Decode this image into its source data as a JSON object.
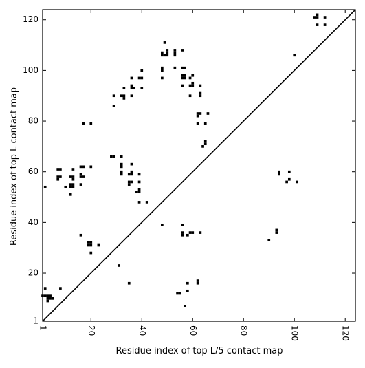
{
  "chart_data": {
    "type": "scatter",
    "title": "",
    "xlabel": "Residue index of top L/5 contact map",
    "ylabel": "Residue index of top L contact map",
    "xlim": [
      1,
      124
    ],
    "ylim": [
      1,
      124
    ],
    "x_ticks": [
      "1",
      "20",
      "40",
      "60",
      "80",
      "100",
      "120"
    ],
    "y_ticks": [
      "1",
      "20",
      "40",
      "60",
      "80",
      "100",
      "120"
    ],
    "x_tick_values": [
      1,
      20,
      40,
      60,
      80,
      100,
      120
    ],
    "y_tick_values": [
      1,
      20,
      40,
      60,
      80,
      100,
      120
    ],
    "x_tick_rotation": "vertical",
    "marker": "square",
    "marker_color": "#000000",
    "diagonal_line": true,
    "grid": false,
    "series": [
      {
        "values": [
          [
            49,
            111
          ],
          [
            48,
            107
          ],
          [
            48,
            106
          ],
          [
            49,
            106
          ],
          [
            50,
            106
          ],
          [
            50,
            107
          ],
          [
            50,
            108
          ],
          [
            53,
            106
          ],
          [
            53,
            107
          ],
          [
            53,
            108
          ],
          [
            56,
            108
          ],
          [
            48,
            101
          ],
          [
            48,
            100
          ],
          [
            53,
            101
          ],
          [
            56,
            101
          ],
          [
            57,
            101
          ],
          [
            56,
            98
          ],
          [
            56,
            97
          ],
          [
            57,
            98
          ],
          [
            57,
            97
          ],
          [
            60,
            98
          ],
          [
            59,
            97
          ],
          [
            40,
            100
          ],
          [
            36,
            97
          ],
          [
            39,
            97
          ],
          [
            40,
            97
          ],
          [
            48,
            97
          ],
          [
            36,
            94
          ],
          [
            37,
            93
          ],
          [
            36,
            93
          ],
          [
            40,
            93
          ],
          [
            56,
            94
          ],
          [
            59,
            94
          ],
          [
            60,
            94
          ],
          [
            60,
            95
          ],
          [
            63,
            94
          ],
          [
            33,
            93
          ],
          [
            29,
            90
          ],
          [
            32,
            90
          ],
          [
            33,
            90
          ],
          [
            33,
            89
          ],
          [
            36,
            90
          ],
          [
            59,
            90
          ],
          [
            63,
            91
          ],
          [
            63,
            90
          ],
          [
            29,
            86
          ],
          [
            62,
            83
          ],
          [
            63,
            83
          ],
          [
            62,
            82
          ],
          [
            66,
            83
          ],
          [
            17,
            79
          ],
          [
            20,
            79
          ],
          [
            62,
            79
          ],
          [
            65,
            79
          ],
          [
            65,
            72
          ],
          [
            65,
            71
          ],
          [
            64,
            70
          ],
          [
            28,
            66
          ],
          [
            29,
            66
          ],
          [
            32,
            66
          ],
          [
            32,
            63
          ],
          [
            32,
            62
          ],
          [
            36,
            63
          ],
          [
            7,
            61
          ],
          [
            8,
            61
          ],
          [
            13,
            61
          ],
          [
            16,
            62
          ],
          [
            17,
            62
          ],
          [
            20,
            62
          ],
          [
            32,
            60
          ],
          [
            32,
            59
          ],
          [
            35,
            59
          ],
          [
            36,
            59
          ],
          [
            36,
            60
          ],
          [
            39,
            59
          ],
          [
            16,
            59
          ],
          [
            16,
            58
          ],
          [
            17,
            58
          ],
          [
            7,
            58
          ],
          [
            8,
            58
          ],
          [
            7,
            57
          ],
          [
            12,
            58
          ],
          [
            13,
            58
          ],
          [
            13,
            57
          ],
          [
            35,
            56
          ],
          [
            36,
            56
          ],
          [
            35,
            55
          ],
          [
            39,
            56
          ],
          [
            16,
            55
          ],
          [
            12,
            55
          ],
          [
            13,
            55
          ],
          [
            12,
            54
          ],
          [
            13,
            54
          ],
          [
            10,
            54
          ],
          [
            2,
            54
          ],
          [
            39,
            53
          ],
          [
            38,
            52
          ],
          [
            39,
            52
          ],
          [
            12,
            51
          ],
          [
            39,
            48
          ],
          [
            42,
            48
          ],
          [
            48,
            39
          ],
          [
            16,
            35
          ],
          [
            19,
            32
          ],
          [
            20,
            32
          ],
          [
            19,
            31
          ],
          [
            20,
            31
          ],
          [
            23,
            31
          ],
          [
            20,
            28
          ],
          [
            31,
            23
          ],
          [
            2,
            14
          ],
          [
            8,
            14
          ],
          [
            35,
            16
          ],
          [
            1,
            11
          ],
          [
            2,
            11
          ],
          [
            3,
            11
          ],
          [
            4,
            11
          ],
          [
            3,
            10
          ],
          [
            4,
            10
          ],
          [
            5,
            10
          ],
          [
            3,
            9
          ],
          [
            109,
            122
          ],
          [
            108,
            121
          ],
          [
            109,
            121
          ],
          [
            112,
            121
          ],
          [
            109,
            118
          ],
          [
            112,
            118
          ],
          [
            100,
            106
          ],
          [
            94,
            60
          ],
          [
            94,
            59
          ],
          [
            98,
            60
          ],
          [
            98,
            57
          ],
          [
            97,
            56
          ],
          [
            101,
            56
          ],
          [
            56,
            39
          ],
          [
            56,
            36
          ],
          [
            56,
            35
          ],
          [
            59,
            36
          ],
          [
            60,
            36
          ],
          [
            63,
            36
          ],
          [
            58,
            35
          ],
          [
            93,
            37
          ],
          [
            93,
            36
          ],
          [
            90,
            33
          ],
          [
            58,
            16
          ],
          [
            62,
            17
          ],
          [
            62,
            16
          ],
          [
            58,
            13
          ],
          [
            54,
            12
          ],
          [
            55,
            12
          ],
          [
            57,
            7
          ]
        ]
      }
    ]
  }
}
